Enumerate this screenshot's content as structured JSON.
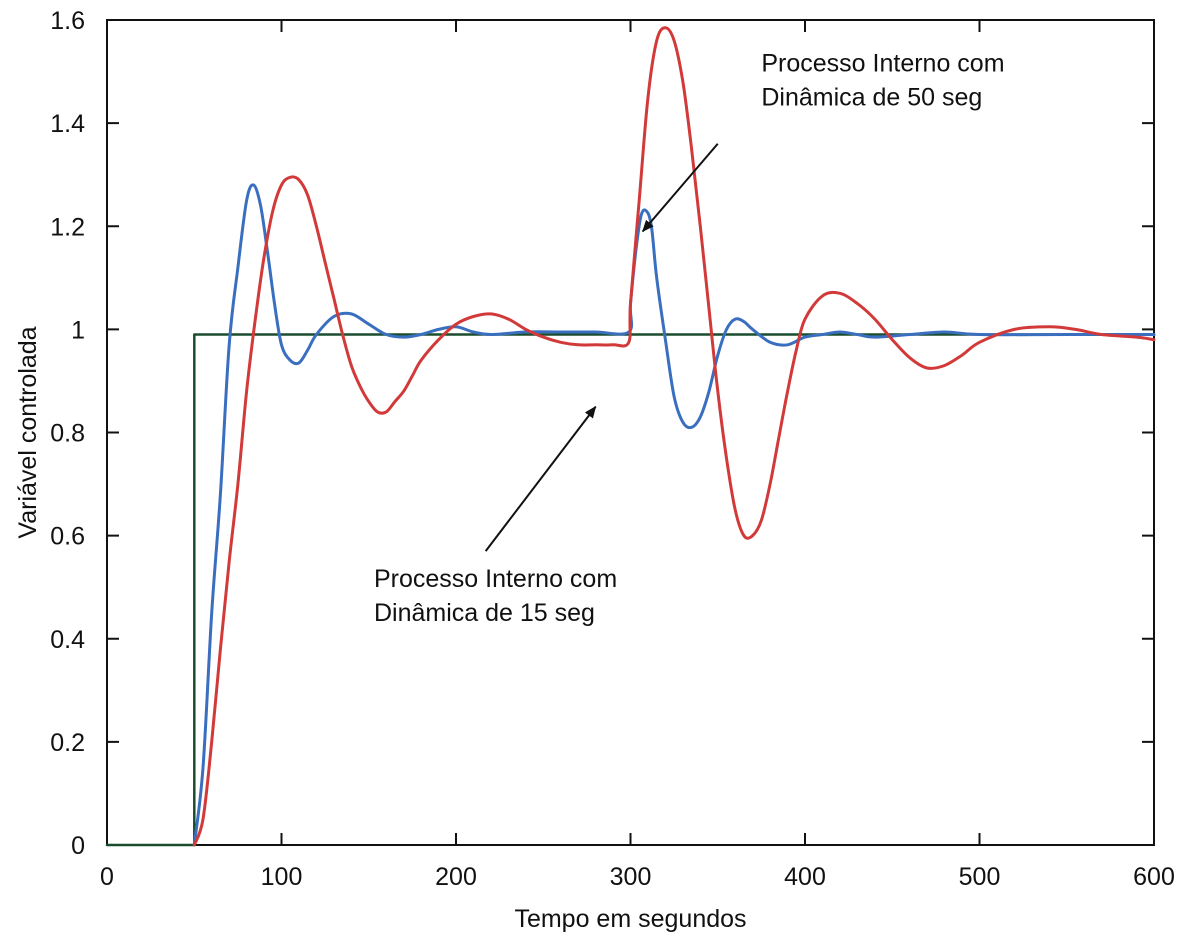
{
  "chart_data": {
    "type": "line",
    "title": "",
    "xlabel": "Tempo em segundos",
    "ylabel": "Variável controlada",
    "xlim": [
      0,
      600
    ],
    "ylim": [
      0,
      1.6
    ],
    "xticks": [
      0,
      100,
      200,
      300,
      400,
      500,
      600
    ],
    "xtick_labels": [
      "0",
      "100",
      "200",
      "300",
      "400",
      "500",
      "600"
    ],
    "yticks": [
      0,
      0.2,
      0.4,
      0.6,
      0.8,
      1.0,
      1.2,
      1.4,
      1.6
    ],
    "ytick_labels": [
      "0",
      "0.2",
      "0.4",
      "0.6",
      "0.8",
      "1",
      "1.2",
      "1.4",
      "1.6"
    ],
    "grid": false,
    "series": [
      {
        "color": "#1a4d2e",
        "x": [
          0,
          50,
          50,
          600
        ],
        "y": [
          0,
          0,
          0.99,
          0.99
        ]
      },
      {
        "color": "#3a6fc0",
        "x": [
          50,
          55,
          60,
          65,
          70,
          75,
          80,
          84,
          88,
          92,
          96,
          100,
          105,
          110,
          115,
          120,
          130,
          140,
          150,
          160,
          170,
          180,
          190,
          200,
          210,
          220,
          240,
          260,
          280,
          299,
          300,
          303,
          306,
          309,
          312,
          315,
          320,
          325,
          330,
          335,
          340,
          345,
          350,
          355,
          360,
          365,
          370,
          380,
          390,
          400,
          410,
          420,
          430,
          440,
          460,
          480,
          500,
          550,
          600
        ],
        "y": [
          0,
          0.15,
          0.45,
          0.68,
          0.97,
          1.12,
          1.25,
          1.28,
          1.24,
          1.15,
          1.05,
          0.97,
          0.94,
          0.935,
          0.96,
          0.99,
          1.025,
          1.03,
          1.01,
          0.99,
          0.985,
          0.99,
          1.0,
          1.005,
          0.995,
          0.99,
          0.995,
          0.995,
          0.995,
          0.995,
          1.05,
          1.15,
          1.22,
          1.23,
          1.2,
          1.1,
          0.98,
          0.87,
          0.82,
          0.81,
          0.83,
          0.88,
          0.95,
          1.0,
          1.02,
          1.015,
          1.0,
          0.975,
          0.97,
          0.985,
          0.99,
          0.995,
          0.99,
          0.985,
          0.99,
          0.995,
          0.99,
          0.99,
          0.99
        ]
      },
      {
        "color": "#d23a3a",
        "x": [
          50,
          55,
          60,
          65,
          70,
          75,
          80,
          85,
          90,
          95,
          100,
          105,
          110,
          115,
          120,
          125,
          130,
          135,
          140,
          145,
          150,
          155,
          160,
          165,
          170,
          175,
          180,
          190,
          200,
          210,
          220,
          230,
          240,
          250,
          260,
          270,
          280,
          290,
          299,
          300,
          305,
          310,
          315,
          320,
          325,
          330,
          335,
          340,
          345,
          350,
          355,
          360,
          365,
          370,
          375,
          380,
          385,
          390,
          395,
          400,
          410,
          420,
          430,
          440,
          450,
          460,
          470,
          480,
          490,
          500,
          520,
          540,
          555,
          570,
          590,
          600
        ],
        "y": [
          0,
          0.05,
          0.2,
          0.38,
          0.55,
          0.7,
          0.88,
          1.02,
          1.14,
          1.23,
          1.28,
          1.295,
          1.29,
          1.26,
          1.2,
          1.13,
          1.06,
          0.99,
          0.93,
          0.89,
          0.86,
          0.84,
          0.84,
          0.86,
          0.88,
          0.91,
          0.94,
          0.98,
          1.01,
          1.025,
          1.03,
          1.02,
          1.0,
          0.985,
          0.975,
          0.97,
          0.97,
          0.97,
          0.975,
          1.05,
          1.25,
          1.45,
          1.56,
          1.585,
          1.56,
          1.48,
          1.35,
          1.2,
          1.04,
          0.88,
          0.75,
          0.65,
          0.6,
          0.6,
          0.63,
          0.7,
          0.79,
          0.88,
          0.96,
          1.02,
          1.065,
          1.07,
          1.05,
          1.02,
          0.98,
          0.945,
          0.925,
          0.93,
          0.95,
          0.975,
          1.0,
          1.005,
          1.0,
          0.99,
          0.985,
          0.98
        ]
      }
    ],
    "annotations": [
      {
        "lines": [
          "Processo Interno com",
          "Dinâmica de 50 seg"
        ],
        "text_x": 375,
        "text_y": 1.5,
        "arrow_from": [
          350,
          1.36
        ],
        "arrow_to": [
          307,
          1.19
        ]
      },
      {
        "lines": [
          "Processo Interno com",
          "Dinâmica de 15 seg"
        ],
        "text_x": 153,
        "text_y": 0.5,
        "arrow_from": [
          217,
          0.57
        ],
        "arrow_to": [
          280,
          0.85
        ]
      }
    ]
  }
}
